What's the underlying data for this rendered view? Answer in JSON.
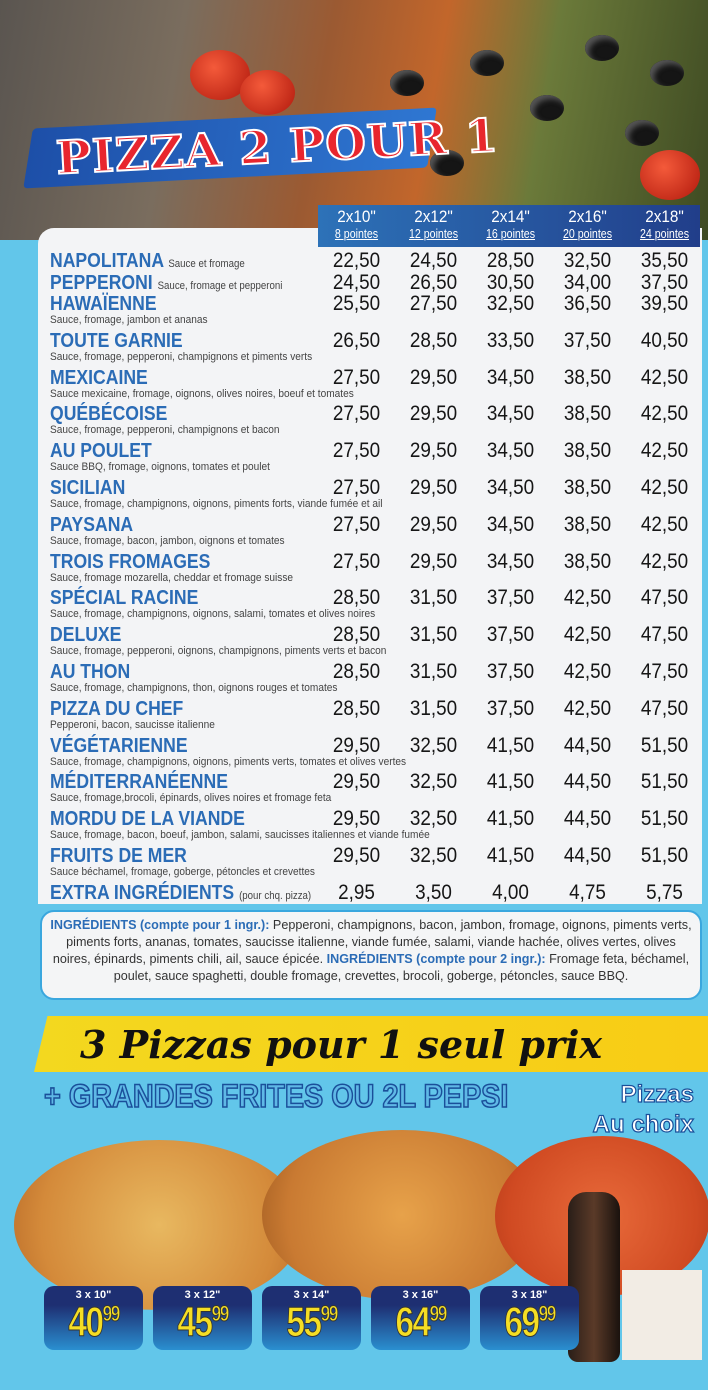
{
  "title": "PIZZA 2 POUR 1",
  "columns": [
    {
      "size": "2x10\"",
      "slices": "8 pointes"
    },
    {
      "size": "2x12\"",
      "slices": "12 pointes"
    },
    {
      "size": "2x14\"",
      "slices": "16 pointes"
    },
    {
      "size": "2x16\"",
      "slices": "20 pointes"
    },
    {
      "size": "2x18\"",
      "slices": "24 pointes"
    }
  ],
  "items": [
    {
      "name": "NAPOLITANA",
      "inline_desc": "Sauce et fromage",
      "prices": [
        "22,50",
        "24,50",
        "28,50",
        "32,50",
        "35,50"
      ]
    },
    {
      "name": "PEPPERONI",
      "inline_desc": "Sauce, fromage et pepperoni",
      "prices": [
        "24,50",
        "26,50",
        "30,50",
        "34,00",
        "37,50"
      ]
    },
    {
      "name": "HAWAÏENNE",
      "desc": "Sauce, fromage, jambon et ananas",
      "prices": [
        "25,50",
        "27,50",
        "32,50",
        "36,50",
        "39,50"
      ]
    },
    {
      "name": "TOUTE GARNIE",
      "desc": "Sauce, fromage, pepperoni, champignons et piments verts",
      "prices": [
        "26,50",
        "28,50",
        "33,50",
        "37,50",
        "40,50"
      ]
    },
    {
      "name": "MEXICAINE",
      "desc": "Sauce mexicaine, fromage, oignons, olives noires, boeuf et tomates",
      "prices": [
        "27,50",
        "29,50",
        "34,50",
        "38,50",
        "42,50"
      ]
    },
    {
      "name": "QUÉBÉCOISE",
      "desc": "Sauce, fromage, pepperoni, champignons et bacon",
      "prices": [
        "27,50",
        "29,50",
        "34,50",
        "38,50",
        "42,50"
      ]
    },
    {
      "name": "AU POULET",
      "desc": "Sauce BBQ, fromage, oignons, tomates et poulet",
      "prices": [
        "27,50",
        "29,50",
        "34,50",
        "38,50",
        "42,50"
      ]
    },
    {
      "name": "SICILIAN",
      "desc": "Sauce, fromage, champignons, oignons, piments forts, viande fumée et ail",
      "prices": [
        "27,50",
        "29,50",
        "34,50",
        "38,50",
        "42,50"
      ]
    },
    {
      "name": "PAYSANA",
      "desc": "Sauce, fromage, bacon, jambon, oignons et tomates",
      "prices": [
        "27,50",
        "29,50",
        "34,50",
        "38,50",
        "42,50"
      ]
    },
    {
      "name": "TROIS FROMAGES",
      "desc": "Sauce, fromage mozarella, cheddar et fromage suisse",
      "prices": [
        "27,50",
        "29,50",
        "34,50",
        "38,50",
        "42,50"
      ]
    },
    {
      "name": "SPÉCIAL RACINE",
      "desc": "Sauce, fromage, champignons, oignons, salami, tomates et olives noires",
      "prices": [
        "28,50",
        "31,50",
        "37,50",
        "42,50",
        "47,50"
      ]
    },
    {
      "name": "DELUXE",
      "desc": "Sauce, fromage, pepperoni, oignons, champignons, piments verts et bacon",
      "prices": [
        "28,50",
        "31,50",
        "37,50",
        "42,50",
        "47,50"
      ]
    },
    {
      "name": "AU THON",
      "desc": "Sauce, fromage, champignons, thon, oignons rouges et tomates",
      "prices": [
        "28,50",
        "31,50",
        "37,50",
        "42,50",
        "47,50"
      ]
    },
    {
      "name": "PIZZA DU CHEF",
      "desc": "Pepperoni, bacon, saucisse italienne",
      "prices": [
        "28,50",
        "31,50",
        "37,50",
        "42,50",
        "47,50"
      ]
    },
    {
      "name": "VÉGÉTARIENNE",
      "desc": "Sauce, fromage, champignons, oignons, piments verts, tomates et olives vertes",
      "prices": [
        "29,50",
        "32,50",
        "41,50",
        "44,50",
        "51,50"
      ]
    },
    {
      "name": "MÉDITERRANÉENNE",
      "desc": "Sauce, fromage,brocoli, épinards, olives noires et fromage feta",
      "prices": [
        "29,50",
        "32,50",
        "41,50",
        "44,50",
        "51,50"
      ]
    },
    {
      "name": "MORDU DE LA VIANDE",
      "desc": "Sauce, fromage, bacon, boeuf, jambon, salami, saucisses italiennes et viande fumée",
      "prices": [
        "29,50",
        "32,50",
        "41,50",
        "44,50",
        "51,50"
      ]
    },
    {
      "name": "FRUITS DE MER",
      "desc": "Sauce béchamel, fromage, goberge, pétoncles et crevettes",
      "prices": [
        "29,50",
        "32,50",
        "41,50",
        "44,50",
        "51,50"
      ]
    },
    {
      "name": "EXTRA INGRÉDIENTS",
      "inline_desc": "(pour chq. pizza)",
      "prices": [
        "2,95",
        "3,50",
        "4,00",
        "4,75",
        "5,75"
      ]
    }
  ],
  "ingredients": {
    "label1": "INGRÉDIENTS (compte pour 1 ingr.):",
    "text1": " Pepperoni, champignons, bacon, jambon, fromage, oignons, piments verts, piments forts, ananas, tomates, saucisse italienne, viande fumée, salami, viande hachée, olives vertes, olives noires, épinards, piments chili, ail, sauce épicée. ",
    "label2": "INGRÉDIENTS (compte pour 2 ingr.):",
    "text2": " Fromage feta, béchamel, poulet, sauce spaghetti, double fromage, crevettes, brocoli, goberge, pétoncles, sauce BBQ."
  },
  "promo": {
    "banner": "3 Pizzas pour 1 seul prix",
    "extra": "+ GRANDES FRITES OU 2L PEPSI",
    "choice_line1": "Pizzas",
    "choice_line2": "Au choix",
    "bottle_brand": "pepsi",
    "offers": [
      {
        "size": "3 x 10\"",
        "dollars": "40",
        "cents": "99"
      },
      {
        "size": "3 x 12\"",
        "dollars": "45",
        "cents": "99"
      },
      {
        "size": "3 x 14\"",
        "dollars": "55",
        "cents": "99"
      },
      {
        "size": "3 x 16\"",
        "dollars": "64",
        "cents": "99"
      },
      {
        "size": "3 x 18\"",
        "dollars": "69",
        "cents": "99"
      }
    ]
  },
  "colors": {
    "accent_blue": "#2b6cb6",
    "background": "#62c6ea",
    "banner_yellow": "#f3d81f",
    "price_yellow": "#f5de24",
    "title_red": "#e8262e"
  }
}
